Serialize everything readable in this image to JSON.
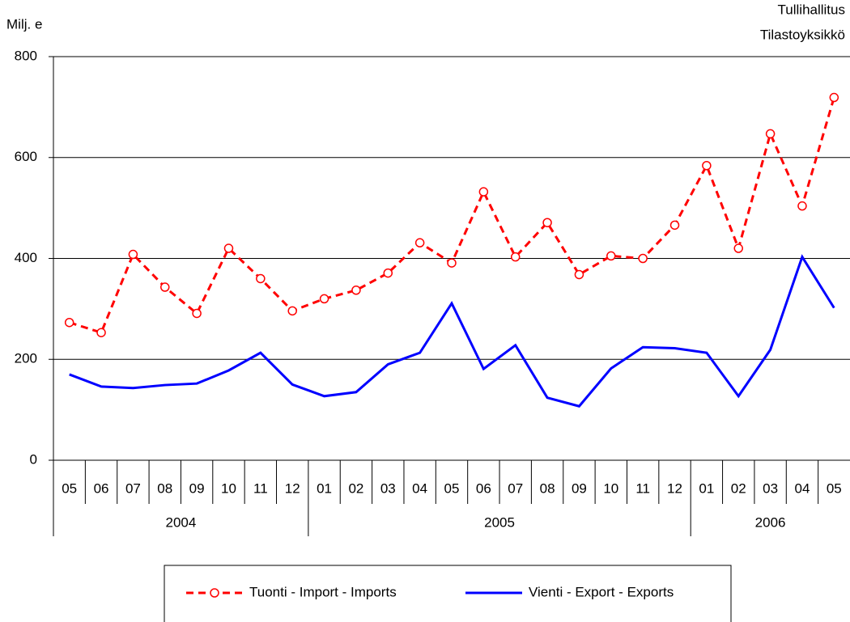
{
  "chart_data": {
    "type": "line",
    "y_label": "Milj. e",
    "source": [
      "Tullihallitus",
      "Tilastoyksikkö"
    ],
    "categories": [
      "05",
      "06",
      "07",
      "08",
      "09",
      "10",
      "11",
      "12",
      "01",
      "02",
      "03",
      "04",
      "05",
      "06",
      "07",
      "08",
      "09",
      "10",
      "11",
      "12",
      "01",
      "02",
      "03",
      "04",
      "05"
    ],
    "years": [
      "2004",
      "2004",
      "2004",
      "2004",
      "2004",
      "2004",
      "2004",
      "2004",
      "2005",
      "2005",
      "2005",
      "2005",
      "2005",
      "2005",
      "2005",
      "2005",
      "2005",
      "2005",
      "2005",
      "2005",
      "2006",
      "2006",
      "2006",
      "2006",
      "2006"
    ],
    "series": [
      {
        "name": "Tuonti - Import - Imports",
        "color": "#ff0000",
        "line_style": "dashed",
        "marker": "circle",
        "values": [
          273,
          253,
          408,
          343,
          291,
          420,
          360,
          296,
          320,
          337,
          371,
          431,
          391,
          532,
          403,
          471,
          368,
          405,
          400,
          466,
          584,
          420,
          647,
          504,
          719
        ]
      },
      {
        "name": "Vienti - Export - Exports",
        "color": "#0000ff",
        "line_style": "solid",
        "marker": "none",
        "values": [
          170,
          146,
          143,
          149,
          152,
          178,
          213,
          150,
          127,
          135,
          190,
          213,
          311,
          181,
          228,
          124,
          107,
          182,
          224,
          222,
          213,
          127,
          219,
          403,
          302
        ]
      }
    ],
    "ylim": [
      0,
      800
    ],
    "yticks": [
      0,
      200,
      400,
      600,
      800
    ],
    "grid": true
  }
}
